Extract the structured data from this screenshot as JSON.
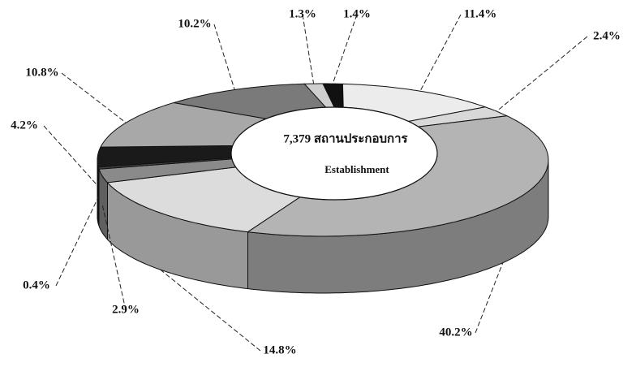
{
  "chart_data": {
    "type": "pie",
    "donut": true,
    "three_d": true,
    "center_labels": [
      "7,379 สถานประกอบการ",
      "Establishment"
    ],
    "values": [
      1.4,
      11.4,
      2.4,
      40.2,
      14.8,
      2.9,
      0.4,
      4.2,
      10.8,
      10.2,
      1.3
    ],
    "value_labels": [
      "1.4%",
      "11.4%",
      "2.4%",
      "40.2%",
      "14.8%",
      "2.9%",
      "0.4%",
      "4.2%",
      "10.8%",
      "10.2%",
      "1.3%"
    ],
    "colors": [
      "#111111",
      "#ececec",
      "#d8d8d8",
      "#b4b4b4",
      "#dcdcdc",
      "#8a8a8a",
      "#444444",
      "#1a1a1a",
      "#a8a8a8",
      "#7a7a7a",
      "#cfcfcf"
    ]
  }
}
